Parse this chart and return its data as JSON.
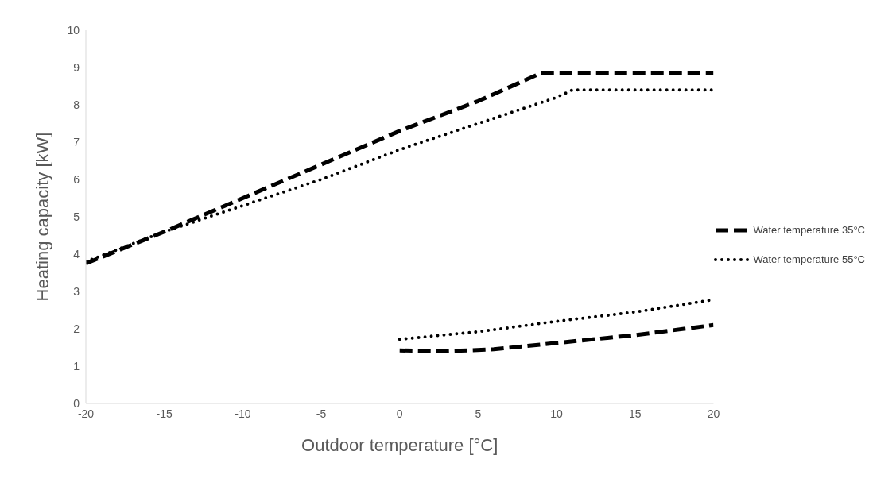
{
  "chart_data": {
    "type": "line",
    "xlabel": "Outdoor temperature [°C]",
    "ylabel": "Heating capacity [kW]",
    "series": [
      {
        "name": "Water temperature 35°C",
        "color": "#000000",
        "line_style": "dashed",
        "x": [
          -20,
          -15,
          -10,
          -5,
          0,
          5,
          9,
          20
        ],
        "values": [
          3.75,
          4.6,
          5.5,
          6.4,
          7.3,
          8.1,
          8.85,
          8.85
        ]
      },
      {
        "name": "Water temperature 55°C",
        "color": "#000000",
        "line_style": "dotted",
        "x": [
          -20,
          -15,
          -10,
          -5,
          0,
          5,
          10,
          11,
          20
        ],
        "values": [
          3.8,
          4.6,
          5.3,
          6.0,
          6.8,
          7.5,
          8.2,
          8.4,
          8.4
        ]
      },
      {
        "color": "#000000",
        "line_style": "dashed",
        "x": [
          0,
          3,
          6,
          10,
          15,
          20
        ],
        "values": [
          1.42,
          1.4,
          1.45,
          1.62,
          1.83,
          2.1
        ]
      },
      {
        "color": "#000000",
        "line_style": "dotted",
        "x": [
          0,
          5,
          10,
          15,
          20
        ],
        "values": [
          1.72,
          1.92,
          2.2,
          2.45,
          2.78
        ]
      }
    ],
    "xlim": [
      -20,
      20
    ],
    "xticks": [
      -20,
      -15,
      -10,
      -5,
      0,
      5,
      10,
      15,
      20
    ],
    "ylim": [
      0,
      10
    ],
    "yticks": [
      0,
      1,
      2,
      3,
      4,
      5,
      6,
      7,
      8,
      9,
      10
    ],
    "grid": false,
    "legend": "right",
    "marker": "none"
  }
}
